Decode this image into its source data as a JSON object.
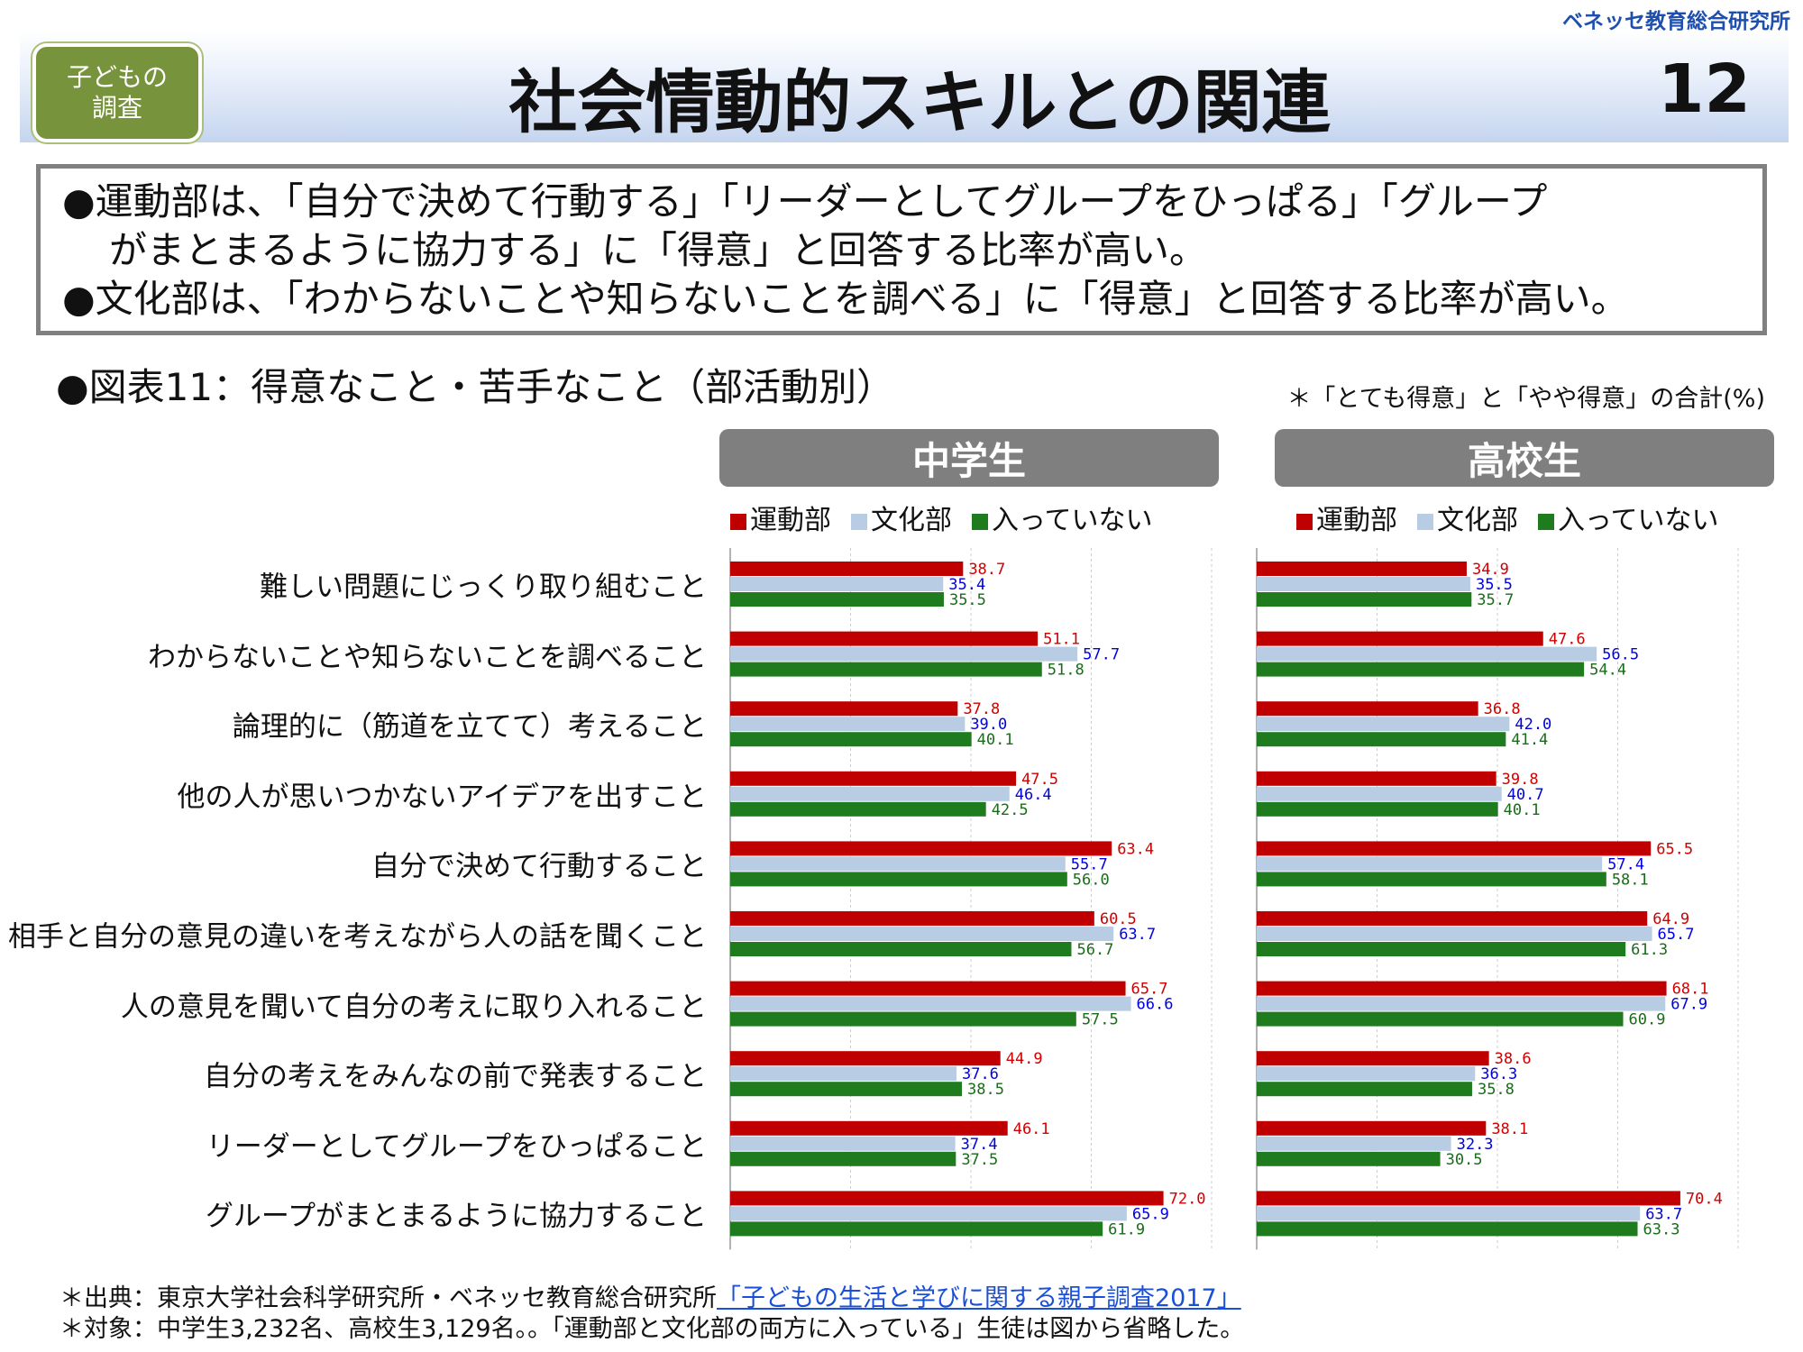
{
  "header": {
    "org": "ベネッセ教育総合研究所",
    "badge_line1": "子どもの",
    "badge_line2": "調査",
    "title": "社会情動的スキルとの関連",
    "page_number": "12"
  },
  "summary": {
    "line1": "●運動部は、「自分で決めて行動する」「リーダーとしてグループをひっぱる」「グループ",
    "line2": "がまとまるように協力する」に「得意」と回答する比率が高い。",
    "line3": "●文化部は、「わからないことや知らないことを調べる」に「得意」と回答する比率が高い。"
  },
  "figure_title": "●図表11：得意なこと・苦手なこと（部活動別）",
  "note": "＊「とても得意」と「やや得意」の合計(%)",
  "legend": [
    "運動部",
    "文化部",
    "入っていない"
  ],
  "colors": {
    "series": [
      "#c00000",
      "#b8cce4",
      "#1e7b1e"
    ],
    "labels": [
      "#d00000",
      "#0000e0",
      "#1a6b1a"
    ]
  },
  "footer": {
    "source_prefix": "＊出典：東京大学社会科学研究所・ベネッセ教育総合研究所",
    "source_link": "「子どもの生活と学びに関する親子調査2017」",
    "target": "＊対象：中学生3,232名、高校生3,129名。。「運動部と文化部の両方に入っている」生徒は図から省略した。"
  },
  "chart_data": {
    "type": "bar",
    "orientation": "horizontal",
    "xlim": [
      0,
      80
    ],
    "grid": true,
    "legend_position": "top",
    "categories": [
      "難しい問題にじっくり取り組むこと",
      "わからないことや知らないことを調べること",
      "論理的に（筋道を立てて）考えること",
      "他の人が思いつかないアイデアを出すこと",
      "自分で決めて行動すること",
      "相手と自分の意見の違いを考えながら人の話を聞くこと",
      "人の意見を聞いて自分の考えに取り入れること",
      "自分の考えをみんなの前で発表すること",
      "リーダーとしてグループをひっぱること",
      "グループがまとまるように協力すること"
    ],
    "panels": [
      {
        "title": "中学生",
        "series": [
          {
            "name": "運動部",
            "values": [
              38.7,
              51.1,
              37.8,
              47.5,
              63.4,
              60.5,
              65.7,
              44.9,
              46.1,
              72.0
            ]
          },
          {
            "name": "文化部",
            "values": [
              35.4,
              57.7,
              39.0,
              46.4,
              55.7,
              63.7,
              66.6,
              37.6,
              37.4,
              65.9
            ]
          },
          {
            "name": "入っていない",
            "values": [
              35.5,
              51.8,
              40.1,
              42.5,
              56.0,
              56.7,
              57.5,
              38.5,
              37.5,
              61.9
            ]
          }
        ]
      },
      {
        "title": "高校生",
        "series": [
          {
            "name": "運動部",
            "values": [
              34.9,
              47.6,
              36.8,
              39.8,
              65.5,
              64.9,
              68.1,
              38.6,
              38.1,
              70.4
            ]
          },
          {
            "name": "文化部",
            "values": [
              35.5,
              56.5,
              42.0,
              40.7,
              57.4,
              65.7,
              67.9,
              36.3,
              32.3,
              63.7
            ]
          },
          {
            "name": "入っていない",
            "values": [
              35.7,
              54.4,
              41.4,
              40.1,
              58.1,
              61.3,
              60.9,
              35.8,
              30.5,
              63.3
            ]
          }
        ]
      }
    ]
  }
}
